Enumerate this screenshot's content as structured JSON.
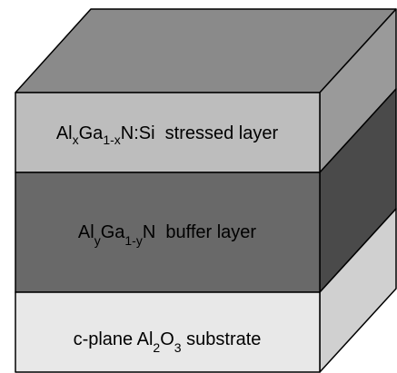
{
  "layers": [
    {
      "label": [
        "Al",
        "x",
        "Ga",
        "1-x",
        "N:Si  stressed layer"
      ]
    },
    {
      "label": [
        "Al",
        "y",
        "Ga",
        "1-y",
        "N  buffer layer"
      ]
    },
    {
      "label": [
        "c-plane Al",
        "2",
        "O",
        "3",
        " substrate"
      ]
    }
  ]
}
